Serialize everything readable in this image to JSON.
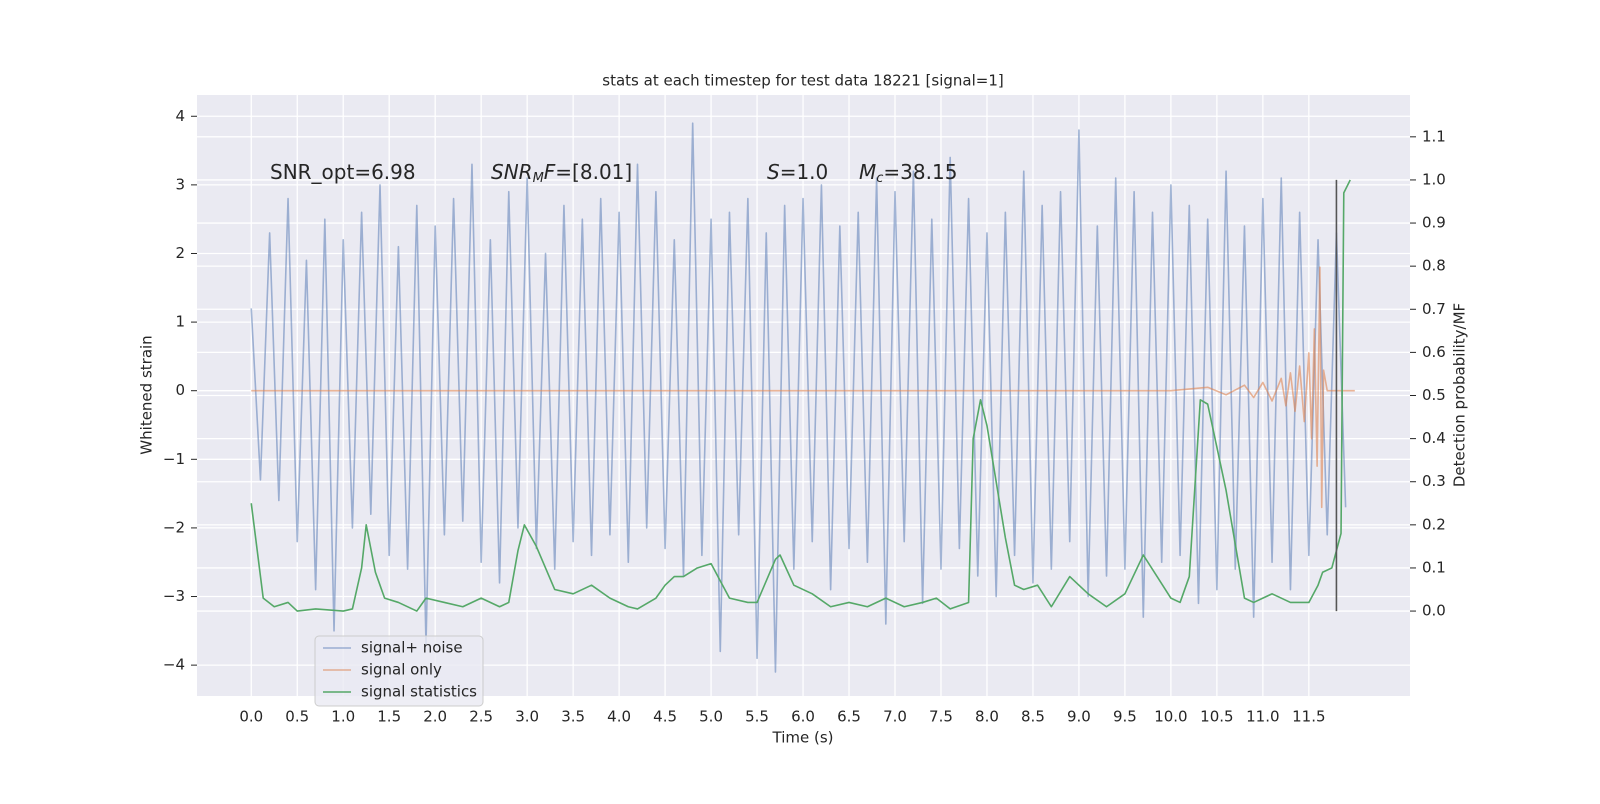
{
  "chart_data": {
    "type": "line",
    "title": "stats at each timestep for test data 18221 [signal=1]",
    "xlabel": "Time (s)",
    "ylabel": "Whitened strain",
    "y2label": "Detection probability/MF",
    "xlim": [
      -0.59,
      12.6
    ],
    "ylim": [
      -4.45,
      4.31
    ],
    "y2lim": [
      -0.197,
      1.197
    ],
    "xticks": [
      {
        "value": 0,
        "label": "0.0"
      },
      0.5,
      {
        "value": 1,
        "label": "1.0"
      },
      1.5,
      {
        "value": 2,
        "label": "2.0"
      },
      2.5,
      {
        "value": 3,
        "label": "3.0"
      },
      3.5,
      {
        "value": 4,
        "label": "4.0"
      },
      4.5,
      {
        "value": 5,
        "label": "5.0"
      },
      5.5,
      {
        "value": 6,
        "label": "6.0"
      },
      6.5,
      {
        "value": 7,
        "label": "7.0"
      },
      7.5,
      {
        "value": 8,
        "label": "8.0"
      },
      8.5,
      {
        "value": 9,
        "label": "9.0"
      },
      9.5,
      {
        "value": 10,
        "label": "10.0"
      },
      10.5,
      {
        "value": 11,
        "label": "11.0"
      },
      11.5
    ],
    "yticks": [
      {
        "value": -4,
        "label": "−4"
      },
      {
        "value": -3,
        "label": "−3"
      },
      {
        "value": -2,
        "label": "−2"
      },
      {
        "value": -1,
        "label": "−1"
      },
      0,
      1,
      2,
      3,
      4
    ],
    "y2ticks": [
      {
        "value": 0,
        "label": "0.0"
      },
      0.1,
      0.2,
      0.3,
      0.4,
      0.5,
      0.6,
      0.7,
      0.8,
      0.9,
      {
        "value": 1,
        "label": "1.0"
      },
      1.1
    ],
    "grid": true,
    "legend": "lower left",
    "annotations": [
      [
        {
          "text": "SNR_opt=6.98",
          "style": "normal"
        }
      ],
      [
        {
          "text": "SNR",
          "style": "italic"
        },
        {
          "text": "M",
          "style": "sub"
        },
        {
          "text": "F",
          "style": "italic"
        },
        {
          "text": "=[8.01]",
          "style": "normal"
        }
      ],
      [
        {
          "text": "S",
          "style": "italic"
        },
        {
          "text": "=1.0",
          "style": "normal"
        }
      ],
      [
        {
          "text": "M",
          "style": "italic"
        },
        {
          "text": "c",
          "style": "sub"
        },
        {
          "text": "=38.15",
          "style": "normal"
        }
      ]
    ],
    "vline": {
      "x": 11.8,
      "ymin": 0,
      "ymax": 1,
      "color": "#555555"
    },
    "series": [
      {
        "name": "signal+ noise",
        "color": "#4c72b0",
        "opacity": 0.5,
        "x": [
          0,
          0.1,
          0.2,
          0.3,
          0.4,
          0.5,
          0.6,
          0.7,
          0.8,
          0.9,
          1,
          1.1,
          1.2,
          1.3,
          1.4,
          1.5,
          1.6,
          1.7,
          1.8,
          1.9,
          2,
          2.1,
          2.2,
          2.3,
          2.4,
          2.5,
          2.6,
          2.7,
          2.8,
          2.9,
          3,
          3.1,
          3.2,
          3.3,
          3.4,
          3.5,
          3.6,
          3.7,
          3.8,
          3.9,
          4,
          4.1,
          4.2,
          4.3,
          4.4,
          4.5,
          4.6,
          4.7,
          4.8,
          4.9,
          5,
          5.1,
          5.2,
          5.3,
          5.4,
          5.5,
          5.6,
          5.7,
          5.8,
          5.9,
          6,
          6.1,
          6.2,
          6.3,
          6.4,
          6.5,
          6.6,
          6.7,
          6.8,
          6.9,
          7,
          7.1,
          7.2,
          7.3,
          7.4,
          7.5,
          7.6,
          7.7,
          7.8,
          7.9,
          8,
          8.1,
          8.2,
          8.3,
          8.4,
          8.5,
          8.6,
          8.7,
          8.8,
          8.9,
          9,
          9.1,
          9.2,
          9.3,
          9.4,
          9.5,
          9.6,
          9.7,
          9.8,
          9.9,
          10,
          10.1,
          10.2,
          10.3,
          10.4,
          10.5,
          10.6,
          10.7,
          10.8,
          10.9,
          11,
          11.1,
          11.2,
          11.3,
          11.4,
          11.5,
          11.6,
          11.7,
          11.8,
          11.9
        ],
        "values": [
          1.2,
          -1.3,
          2.3,
          -1.6,
          2.8,
          -2.2,
          1.9,
          -2.9,
          2.5,
          -3.5,
          2.2,
          -2.0,
          2.6,
          -1.8,
          3.0,
          -2.4,
          2.1,
          -2.6,
          2.7,
          -3.7,
          2.4,
          -2.1,
          2.8,
          -1.9,
          3.3,
          -2.5,
          2.2,
          -2.8,
          2.9,
          -2.0,
          3.1,
          -2.3,
          2.0,
          -2.6,
          2.7,
          -2.2,
          2.5,
          -2.4,
          2.8,
          -2.1,
          2.6,
          -2.5,
          3.3,
          -2.0,
          2.9,
          -2.3,
          2.2,
          -2.7,
          3.9,
          -2.4,
          2.5,
          -3.8,
          2.6,
          -2.1,
          2.8,
          -3.9,
          2.3,
          -4.1,
          2.7,
          -2.6,
          2.8,
          -2.2,
          3.0,
          -2.9,
          2.4,
          -2.3,
          2.6,
          -2.5,
          3.1,
          -3.4,
          2.9,
          -2.2,
          3.2,
          -3.1,
          2.5,
          -2.6,
          3.4,
          -2.3,
          2.8,
          -2.7,
          2.3,
          -3.0,
          2.6,
          -2.4,
          3.2,
          -2.8,
          2.7,
          -2.6,
          2.9,
          -2.2,
          3.8,
          -3.0,
          2.4,
          -2.7,
          3.1,
          -2.6,
          2.9,
          -3.3,
          2.6,
          -2.5,
          3.0,
          -2.4,
          2.7,
          -3.1,
          2.5,
          -2.9,
          3.2,
          -2.6,
          2.4,
          -3.3,
          2.8,
          -2.5,
          3.1,
          -2.9,
          2.6,
          -2.4,
          2.2,
          -2.1,
          2.3,
          -1.7
        ]
      },
      {
        "name": "signal only",
        "color": "#dd8452",
        "opacity": 0.6,
        "x": [
          0,
          10.0,
          10.4,
          10.6,
          10.8,
          10.9,
          11.0,
          11.1,
          11.2,
          11.25,
          11.3,
          11.35,
          11.4,
          11.45,
          11.5,
          11.53,
          11.56,
          11.59,
          11.62,
          11.64,
          11.66,
          11.7,
          12.0
        ],
        "values": [
          0,
          0,
          0.05,
          -0.06,
          0.08,
          -0.1,
          0.12,
          -0.15,
          0.18,
          -0.22,
          0.26,
          -0.3,
          0.36,
          -0.45,
          0.55,
          -0.7,
          0.9,
          -1.1,
          1.8,
          -1.7,
          0.3,
          0,
          0
        ]
      },
      {
        "name": "signal statistics",
        "color": "#55a868",
        "opacity": 1,
        "axis": "y2",
        "x": [
          0,
          0.13,
          0.25,
          0.4,
          0.5,
          0.7,
          1.0,
          1.1,
          1.2,
          1.25,
          1.35,
          1.45,
          1.6,
          1.8,
          1.9,
          2.1,
          2.3,
          2.5,
          2.7,
          2.8,
          2.9,
          2.97,
          3.1,
          3.3,
          3.5,
          3.7,
          3.9,
          4.1,
          4.2,
          4.4,
          4.5,
          4.6,
          4.7,
          4.85,
          5.0,
          5.1,
          5.2,
          5.4,
          5.5,
          5.7,
          5.75,
          5.9,
          6.1,
          6.3,
          6.5,
          6.7,
          6.9,
          7.1,
          7.3,
          7.45,
          7.6,
          7.8,
          7.85,
          7.93,
          8.0,
          8.2,
          8.3,
          8.4,
          8.55,
          8.7,
          8.9,
          9.1,
          9.3,
          9.5,
          9.7,
          9.85,
          10.0,
          10.1,
          10.2,
          10.32,
          10.4,
          10.6,
          10.8,
          10.9,
          11.1,
          11.3,
          11.5,
          11.6,
          11.65,
          11.75,
          11.85,
          11.88,
          11.95
        ],
        "values": [
          0.25,
          0.03,
          0.01,
          0.02,
          0.0,
          0.005,
          0.0,
          0.005,
          0.1,
          0.2,
          0.09,
          0.03,
          0.02,
          0.0,
          0.03,
          0.02,
          0.01,
          0.03,
          0.01,
          0.02,
          0.14,
          0.2,
          0.15,
          0.05,
          0.04,
          0.06,
          0.03,
          0.01,
          0.005,
          0.03,
          0.06,
          0.08,
          0.08,
          0.1,
          0.11,
          0.07,
          0.03,
          0.02,
          0.02,
          0.12,
          0.13,
          0.06,
          0.04,
          0.01,
          0.02,
          0.01,
          0.03,
          0.01,
          0.02,
          0.03,
          0.005,
          0.02,
          0.4,
          0.49,
          0.43,
          0.17,
          0.06,
          0.05,
          0.06,
          0.01,
          0.08,
          0.04,
          0.01,
          0.04,
          0.13,
          0.08,
          0.03,
          0.02,
          0.08,
          0.49,
          0.48,
          0.28,
          0.03,
          0.02,
          0.04,
          0.02,
          0.02,
          0.06,
          0.09,
          0.1,
          0.18,
          0.97,
          1.0
        ]
      }
    ]
  }
}
